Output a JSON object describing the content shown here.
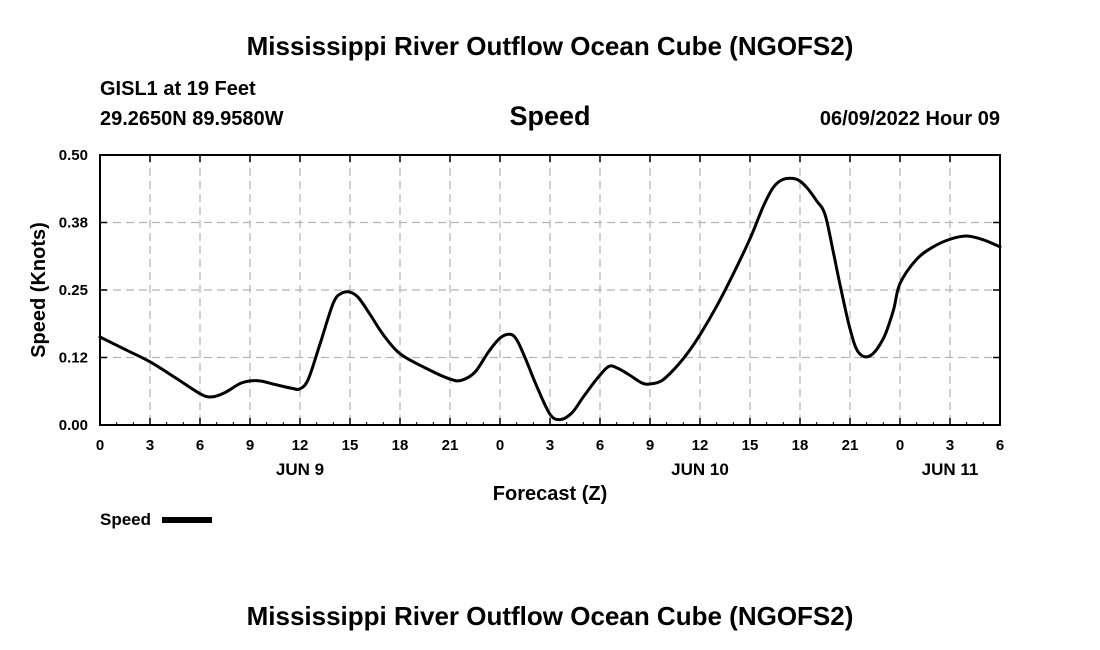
{
  "chart_data": {
    "type": "line",
    "title": "Mississippi River Outflow Ocean Cube (NGOFS2)",
    "footer_title": "Mississippi River Outflow Ocean Cube (NGOFS2)",
    "station": "GISL1 at 19 Feet",
    "location": "29.2650N  89.9580W",
    "subtitle": "Speed",
    "timestamp": "06/09/2022 Hour 09",
    "xlabel": "Forecast (Z)",
    "ylabel": "Speed (Knots)",
    "xlim": [
      0,
      54
    ],
    "ylim": [
      0,
      0.5
    ],
    "x_ticks": [
      0,
      3,
      6,
      9,
      12,
      15,
      18,
      21,
      24,
      27,
      30,
      33,
      36,
      39,
      42,
      45,
      48,
      51,
      54
    ],
    "x_tick_labels": [
      "0",
      "3",
      "6",
      "9",
      "12",
      "15",
      "18",
      "21",
      "0",
      "3",
      "6",
      "9",
      "12",
      "15",
      "18",
      "21",
      "0",
      "3",
      "6"
    ],
    "y_ticks": [
      0,
      0.125,
      0.25,
      0.375,
      0.5
    ],
    "y_tick_labels": [
      "0.00",
      "0.12",
      "0.25",
      "0.38",
      "0.50"
    ],
    "date_labels": [
      {
        "x": 12,
        "label": "JUN 9"
      },
      {
        "x": 36,
        "label": "JUN 10"
      },
      {
        "x": 51,
        "label": "JUN 11"
      }
    ],
    "grid": true,
    "legend": {
      "label": "Speed",
      "placement": "bottom-left"
    },
    "series": [
      {
        "name": "Speed",
        "color": "#000000",
        "x": [
          0,
          1.5,
          3,
          4.5,
          6,
          6.7,
          7.5,
          8.5,
          9.5,
          10.5,
          11.5,
          12,
          12.5,
          13.2,
          14,
          14.5,
          15,
          15.5,
          16.2,
          17,
          18,
          19.5,
          21,
          21.7,
          22.5,
          23.3,
          24,
          24.6,
          25,
          25.5,
          26.2,
          27,
          27.6,
          28.3,
          29,
          29.8,
          30.5,
          31,
          31.7,
          32.5,
          33,
          33.7,
          34.5,
          35.3,
          36,
          37,
          38,
          39,
          39.8,
          40.4,
          41,
          41.8,
          42.4,
          43,
          43.5,
          44,
          44.4,
          45,
          45.5,
          46.2,
          47,
          47.6,
          48,
          49,
          50,
          51,
          52,
          53,
          54
        ],
        "values": [
          0.163,
          0.14,
          0.117,
          0.088,
          0.058,
          0.052,
          0.06,
          0.078,
          0.082,
          0.075,
          0.068,
          0.067,
          0.085,
          0.15,
          0.226,
          0.244,
          0.246,
          0.236,
          0.205,
          0.167,
          0.132,
          0.106,
          0.085,
          0.083,
          0.098,
          0.135,
          0.161,
          0.168,
          0.158,
          0.125,
          0.072,
          0.02,
          0.01,
          0.022,
          0.052,
          0.085,
          0.108,
          0.106,
          0.094,
          0.078,
          0.076,
          0.082,
          0.105,
          0.135,
          0.167,
          0.22,
          0.28,
          0.345,
          0.405,
          0.44,
          0.455,
          0.455,
          0.44,
          0.415,
          0.39,
          0.32,
          0.26,
          0.178,
          0.135,
          0.128,
          0.16,
          0.212,
          0.262,
          0.307,
          0.33,
          0.344,
          0.35,
          0.343,
          0.33
        ]
      }
    ]
  }
}
